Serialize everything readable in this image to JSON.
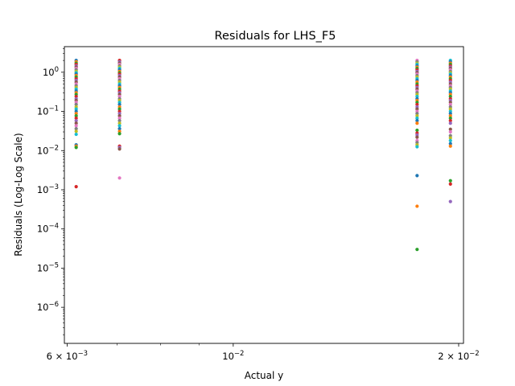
{
  "chart_data": {
    "type": "scatter",
    "title": "Residuals for LHS_F5",
    "xlabel": "Actual y",
    "ylabel": "Residuals (Log-Log Scale)",
    "xscale": "log",
    "yscale": "log",
    "xlim": [
      0.00595,
      0.0203
    ],
    "ylim": [
      1.2e-07,
      4.5
    ],
    "grid": false,
    "legend": "none",
    "x_ticks": [
      {
        "value": 0.006,
        "mantissa": "6",
        "times": "×",
        "base": "10",
        "exp": "−3"
      },
      {
        "value": 0.01,
        "mantissa": "",
        "times": "",
        "base": "10",
        "exp": "−2"
      },
      {
        "value": 0.02,
        "mantissa": "2",
        "times": "×",
        "base": "10",
        "exp": "−2"
      }
    ],
    "y_ticks": [
      {
        "value": 1,
        "base": "10",
        "exp": "0"
      },
      {
        "value": 0.1,
        "base": "10",
        "exp": "−1"
      },
      {
        "value": 0.01,
        "base": "10",
        "exp": "−2"
      },
      {
        "value": 0.001,
        "base": "10",
        "exp": "−3"
      },
      {
        "value": 0.0001,
        "base": "10",
        "exp": "−4"
      },
      {
        "value": 1e-05,
        "base": "10",
        "exp": "−5"
      },
      {
        "value": 1e-06,
        "base": "10",
        "exp": "−6"
      }
    ],
    "colors": [
      "#1f77b4",
      "#ff7f0e",
      "#2ca02c",
      "#d62728",
      "#9467bd",
      "#8c564b",
      "#e377c2",
      "#7f7f7f",
      "#bcbd22",
      "#17becf"
    ],
    "series": [
      {
        "x": 0.00617,
        "residuals": [
          2.0,
          1.85,
          1.7,
          1.58,
          1.45,
          1.35,
          1.25,
          1.15,
          1.05,
          0.97,
          0.9,
          0.82,
          0.75,
          0.68,
          0.62,
          0.56,
          0.5,
          0.45,
          0.41,
          0.37,
          0.33,
          0.3,
          0.27,
          0.24,
          0.21,
          0.19,
          0.17,
          0.15,
          0.13,
          0.115,
          0.1,
          0.088,
          0.077,
          0.067,
          0.058,
          0.05,
          0.043,
          0.036,
          0.031,
          0.026,
          0.014,
          0.013,
          0.012,
          0.0012
        ]
      },
      {
        "x": 0.00705,
        "residuals": [
          2.0,
          1.85,
          1.7,
          1.58,
          1.45,
          1.35,
          1.25,
          1.15,
          1.05,
          0.97,
          0.9,
          0.82,
          0.75,
          0.68,
          0.62,
          0.56,
          0.5,
          0.45,
          0.41,
          0.37,
          0.33,
          0.3,
          0.27,
          0.24,
          0.21,
          0.19,
          0.17,
          0.15,
          0.13,
          0.115,
          0.1,
          0.088,
          0.077,
          0.067,
          0.058,
          0.05,
          0.043,
          0.036,
          0.031,
          0.027,
          0.013,
          0.012,
          0.011,
          0.002
        ]
      },
      {
        "x": 0.0176,
        "residuals": [
          2.0,
          1.85,
          1.7,
          1.58,
          1.45,
          1.35,
          1.25,
          1.15,
          1.05,
          0.97,
          0.9,
          0.82,
          0.75,
          0.68,
          0.62,
          0.56,
          0.5,
          0.45,
          0.41,
          0.37,
          0.33,
          0.3,
          0.27,
          0.24,
          0.21,
          0.19,
          0.17,
          0.15,
          0.13,
          0.115,
          0.1,
          0.088,
          0.077,
          0.067,
          0.058,
          0.05,
          0.033,
          0.028,
          0.025,
          0.022,
          0.018,
          0.016,
          0.014,
          0.0125,
          0.0023,
          0.00038,
          3e-05
        ]
      },
      {
        "x": 0.0195,
        "residuals": [
          2.0,
          1.85,
          1.7,
          1.58,
          1.45,
          1.35,
          1.25,
          1.15,
          1.05,
          0.97,
          0.9,
          0.82,
          0.75,
          0.68,
          0.62,
          0.56,
          0.5,
          0.45,
          0.41,
          0.37,
          0.33,
          0.3,
          0.27,
          0.24,
          0.21,
          0.19,
          0.17,
          0.15,
          0.13,
          0.115,
          0.1,
          0.088,
          0.077,
          0.067,
          0.058,
          0.05,
          0.035,
          0.03,
          0.024,
          0.021,
          0.018,
          0.015,
          0.013,
          0.0017,
          0.0014,
          0.0005
        ]
      }
    ]
  }
}
